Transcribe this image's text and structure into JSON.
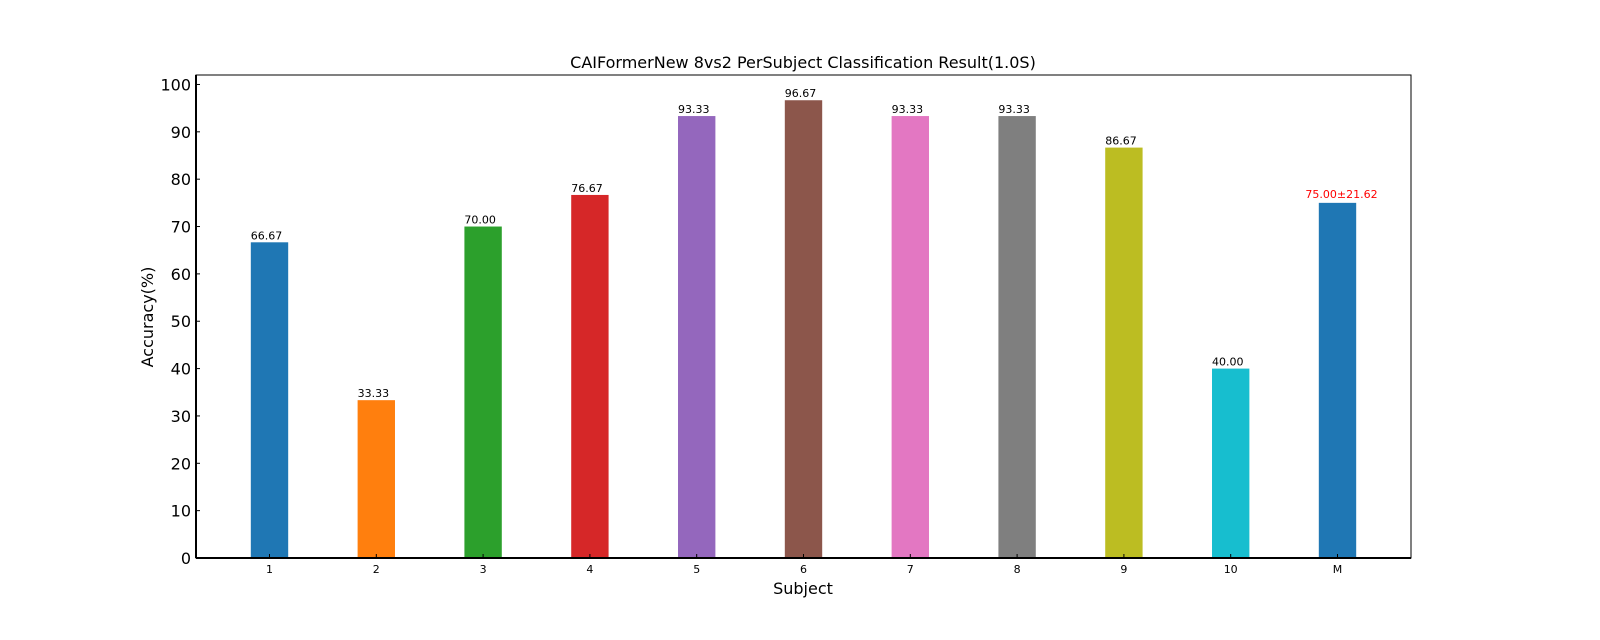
{
  "chart_data": {
    "type": "bar",
    "title": "CAIFormerNew 8vs2 PerSubject Classification Result(1.0S)",
    "xlabel": "Subject",
    "ylabel": "Accuracy(%)",
    "ylim": [
      0,
      102
    ],
    "yticks": [
      0,
      10,
      20,
      30,
      40,
      50,
      60,
      70,
      80,
      90,
      100
    ],
    "grid": false,
    "legend": "none",
    "categories": [
      "1",
      "2",
      "3",
      "4",
      "5",
      "6",
      "7",
      "8",
      "9",
      "10",
      "M"
    ],
    "values": [
      66.67,
      33.33,
      70.0,
      76.67,
      93.33,
      96.67,
      93.33,
      93.33,
      86.67,
      40.0,
      75.0
    ],
    "data_labels": [
      "66.67",
      "33.33",
      "70.00",
      "76.67",
      "93.33",
      "96.67",
      "93.33",
      "93.33",
      "86.67",
      "40.00",
      "75.00±21.62"
    ],
    "colors": [
      "#1f77b4",
      "#ff7f0e",
      "#2ca02c",
      "#d62728",
      "#9467bd",
      "#8c564b",
      "#e377c2",
      "#7f7f7f",
      "#bcbd22",
      "#17becf",
      "#1f77b4"
    ],
    "label_colors": [
      "#000000",
      "#000000",
      "#000000",
      "#000000",
      "#000000",
      "#000000",
      "#000000",
      "#000000",
      "#000000",
      "#000000",
      "#ff0000"
    ]
  }
}
